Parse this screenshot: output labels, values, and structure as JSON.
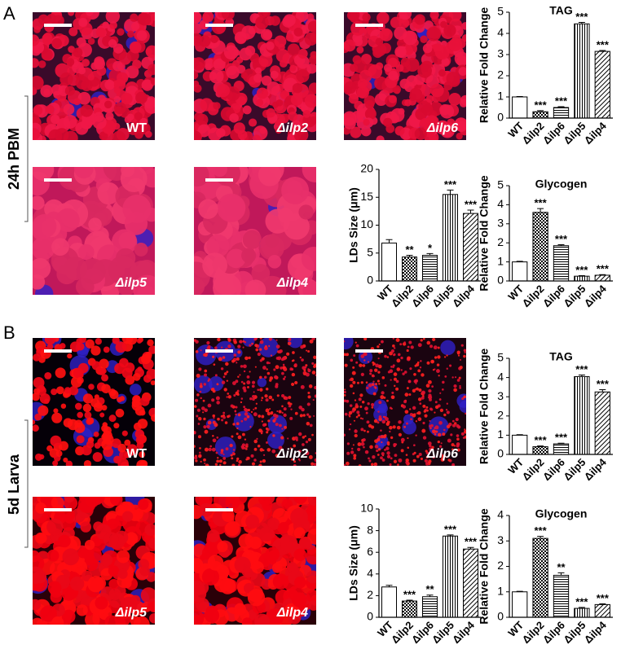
{
  "panels": [
    {
      "label": "A",
      "row_label": "24h PBM",
      "images": [
        "WT",
        "Δilp2",
        "Δilp6",
        "Δilp5",
        "Δilp4"
      ]
    },
    {
      "label": "B",
      "row_label": "5d Larva",
      "images": [
        "WT",
        "Δilp2",
        "Δilp6",
        "Δilp5",
        "Δilp4"
      ]
    }
  ],
  "chart_data": [
    {
      "type": "bar",
      "title": "TAG",
      "y_label": "Relative Fold Change",
      "categories": [
        "WT",
        "Δilp2",
        "Δilp6",
        "Δilp5",
        "Δilp4"
      ],
      "values": [
        1,
        0.3,
        0.5,
        4.45,
        3.15
      ],
      "errors": [
        0.02,
        0.05,
        0.04,
        0.07,
        0.04
      ],
      "significance": [
        null,
        "***",
        "***",
        "***",
        "***"
      ],
      "patterns": [
        "none",
        "checker",
        "hlines",
        "vlines",
        "diag"
      ],
      "ylim": [
        0,
        5
      ],
      "yticks": [
        0,
        1,
        2,
        3,
        4,
        5
      ]
    },
    {
      "type": "bar",
      "y_label": "LDs Size (μm)",
      "categories": [
        "WT",
        "Δilp2",
        "Δilp6",
        "Δilp5",
        "Δilp4"
      ],
      "values": [
        6.8,
        4.3,
        4.6,
        15.5,
        12.1
      ],
      "errors": [
        0.6,
        0.3,
        0.3,
        0.8,
        0.6
      ],
      "significance": [
        null,
        "**",
        "*",
        "***",
        "***"
      ],
      "patterns": [
        "none",
        "checker",
        "hlines",
        "vlines",
        "diag"
      ],
      "ylim": [
        0,
        20
      ],
      "yticks": [
        0,
        5,
        10,
        15,
        20
      ]
    },
    {
      "type": "bar",
      "title": "Glycogen",
      "y_label": "Relative Fold Change",
      "categories": [
        "WT",
        "Δilp2",
        "Δilp6",
        "Δilp5",
        "Δilp4"
      ],
      "values": [
        1,
        3.6,
        1.85,
        0.25,
        0.3
      ],
      "errors": [
        0.03,
        0.2,
        0.05,
        0.03,
        0.03
      ],
      "significance": [
        null,
        "***",
        "***",
        "***",
        "***"
      ],
      "patterns": [
        "none",
        "checker",
        "hlines",
        "vlines",
        "diag"
      ],
      "ylim": [
        0,
        5
      ],
      "yticks": [
        0,
        1,
        2,
        3,
        4,
        5
      ]
    },
    {
      "type": "bar",
      "title": "TAG",
      "y_label": "Relative Fold Change",
      "categories": [
        "WT",
        "Δilp2",
        "Δilp6",
        "Δilp5",
        "Δilp4"
      ],
      "values": [
        1,
        0.4,
        0.55,
        4.05,
        3.25
      ],
      "errors": [
        0.03,
        0.04,
        0.03,
        0.08,
        0.12
      ],
      "significance": [
        null,
        "***",
        "***",
        "***",
        "***"
      ],
      "patterns": [
        "none",
        "checker",
        "hlines",
        "vlines",
        "diag"
      ],
      "ylim": [
        0,
        5
      ],
      "yticks": [
        0,
        1,
        2,
        3,
        4,
        5
      ]
    },
    {
      "type": "bar",
      "y_label": "LDs Size (μm)",
      "categories": [
        "WT",
        "Δilp2",
        "Δilp6",
        "Δilp5",
        "Δilp4"
      ],
      "values": [
        2.8,
        1.5,
        1.9,
        7.5,
        6.3
      ],
      "errors": [
        0.15,
        0.08,
        0.15,
        0.1,
        0.15
      ],
      "significance": [
        null,
        "***",
        "**",
        "***",
        "***"
      ],
      "patterns": [
        "none",
        "checker",
        "hlines",
        "vlines",
        "diag"
      ],
      "ylim": [
        0,
        10
      ],
      "yticks": [
        0,
        2,
        4,
        6,
        8,
        10
      ]
    },
    {
      "type": "bar",
      "title": "Glycogen",
      "y_label": "Relative Fold Change",
      "categories": [
        "WT",
        "Δilp2",
        "Δilp6",
        "Δilp5",
        "Δilp4"
      ],
      "values": [
        1,
        3.1,
        1.65,
        0.35,
        0.5
      ],
      "errors": [
        0.02,
        0.08,
        0.1,
        0.04,
        0.03
      ],
      "significance": [
        null,
        "***",
        "**",
        "***",
        "***"
      ],
      "patterns": [
        "none",
        "checker",
        "hlines",
        "vlines",
        "diag"
      ],
      "ylim": [
        0,
        4
      ],
      "yticks": [
        0,
        1,
        2,
        3,
        4
      ]
    }
  ]
}
